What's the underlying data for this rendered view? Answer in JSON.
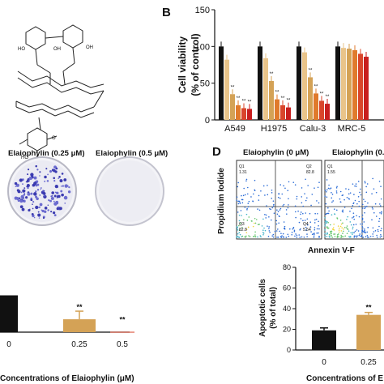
{
  "panels": {
    "B": "B",
    "D": "D"
  },
  "molecule": {
    "label_ho_top": "HO",
    "label_oh_1": "OH",
    "label_oh_2": "OH",
    "label_ho_bottom": "HO",
    "label_o": "O"
  },
  "colony": {
    "label_025": "Elaiophylin (0.25 μM)",
    "label_05": "Elaiophylin (0.5 μM)"
  },
  "flow": {
    "label_0": "Elaiophylin (0 μM)",
    "label_025": "Elaiophylin (0.25",
    "ylabel": "Propidium Iodide",
    "xlabel": "Annexin V-F",
    "plot1_quadrants": {
      "q1": "Q1",
      "q1_val": "1.31",
      "q2": "Q2",
      "q2_val": "82.8",
      "q3": "Q3",
      "q3_val": "82.8",
      "q4": "Q4",
      "q4_val": "5.54"
    },
    "plot2_quadrants": {
      "q1": "Q1",
      "q1_val": "1.55",
      "q2": "Q2",
      "q2_val": "",
      "q3": "Q3",
      "q3_val": "",
      "q4": "Q4",
      "q4_val": ""
    }
  },
  "colors": {
    "black": "#111111",
    "gold": "#d4a256",
    "orange": "#e07a2c",
    "red_orange": "#d9452b",
    "red": "#c81e1e",
    "dark_red": "#8b1a1a"
  },
  "chart_data": [
    {
      "id": "viability",
      "type": "bar",
      "ylabel_line1": "Cell viability",
      "ylabel_line2": "(% of control)",
      "ylim": [
        0,
        150
      ],
      "yticks": [
        0,
        50,
        100,
        150
      ],
      "categories": [
        "A549",
        "H1975",
        "Calu-3",
        "MRC-5"
      ],
      "series": [
        {
          "values": [
            100,
            100,
            100,
            100
          ],
          "color": "#111111"
        },
        {
          "values": [
            82,
            84,
            92,
            98
          ],
          "color": "#e9c48a"
        },
        {
          "values": [
            35,
            53,
            58,
            97
          ],
          "color": "#d4a256"
        },
        {
          "values": [
            20,
            28,
            36,
            95
          ],
          "color": "#e07a2c"
        },
        {
          "values": [
            16,
            20,
            26,
            90
          ],
          "color": "#d9452b"
        },
        {
          "values": [
            15,
            17,
            22,
            86
          ],
          "color": "#c81e1e"
        }
      ],
      "annotations": [
        [
          "",
          "",
          "**",
          "**",
          "**",
          "**"
        ],
        [
          "",
          "",
          "**",
          "**",
          "**",
          "**"
        ],
        [
          "",
          "",
          "**",
          "**",
          "**",
          "**"
        ],
        [
          "",
          "",
          "",
          "",
          "",
          ""
        ]
      ],
      "error": 6
    },
    {
      "id": "colony_quant",
      "type": "bar",
      "xlabel": "Concentrations of Elaiophylin (μM)",
      "categories": [
        "0",
        "0.25",
        "0.5"
      ],
      "values": [
        100,
        35,
        1
      ],
      "colors": [
        "#111111",
        "#d4a256",
        "#d9452b"
      ],
      "annotations": [
        "",
        "**",
        "**"
      ],
      "ylim": [
        0,
        110
      ]
    },
    {
      "id": "apoptosis",
      "type": "bar",
      "ylabel_line1": "Apoptotic cells",
      "ylabel_line2": "(% of total)",
      "xlabel": "Concentrations of E",
      "ylim": [
        0,
        80
      ],
      "yticks": [
        0,
        20,
        40,
        60,
        80
      ],
      "categories": [
        "0",
        "0.25"
      ],
      "values": [
        19,
        34
      ],
      "colors": [
        "#111111",
        "#d4a256"
      ],
      "annotations": [
        "",
        "**"
      ]
    }
  ]
}
